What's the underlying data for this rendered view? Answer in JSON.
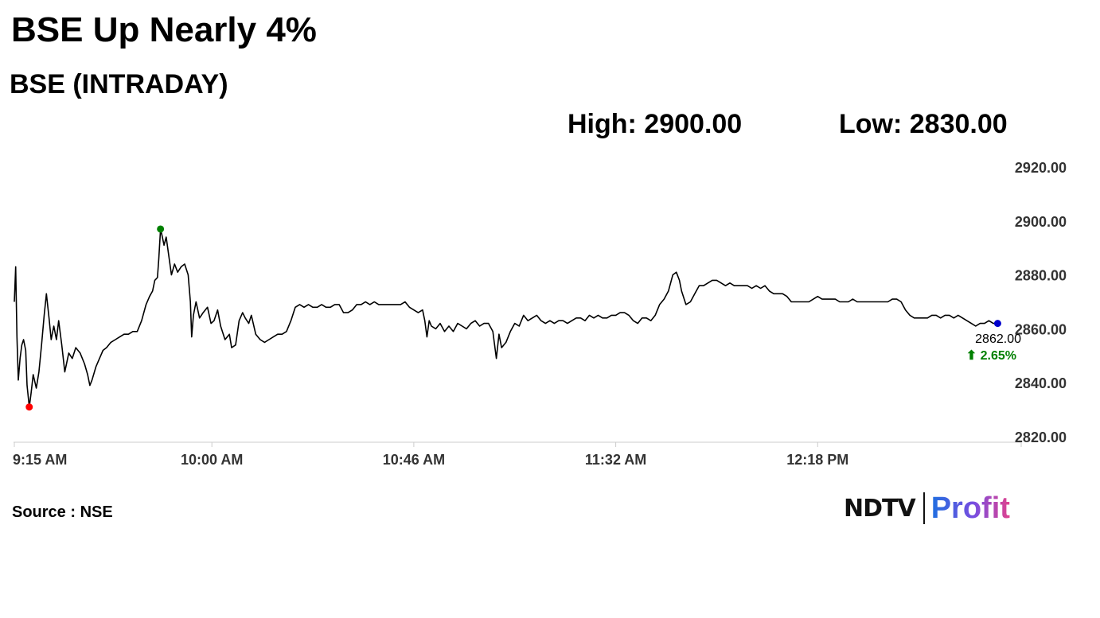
{
  "headline": "BSE Up Nearly 4%",
  "subtitle": "BSE (INTRADAY)",
  "stats": {
    "high": "High: 2900.00",
    "low": "Low: 2830.00"
  },
  "source": "Source : NSE",
  "logo": {
    "brand": "NDTV",
    "product": "Profit"
  },
  "colors": {
    "line": "#000000",
    "high_marker": "#008000",
    "low_marker": "#ff0000",
    "last_marker": "#0000cc",
    "change_up": "#008000",
    "grid_axis": "#cccccc"
  },
  "chart_data": {
    "type": "line",
    "title": "BSE (INTRADAY)",
    "ylim": [
      2820,
      2920
    ],
    "y_ticks": [
      "2920.00",
      "2900.00",
      "2880.00",
      "2860.00",
      "2840.00",
      "2820.00"
    ],
    "x_ticks": [
      "9:15 AM",
      "10:00 AM",
      "10:46 AM",
      "11:32 AM",
      "12:18 PM"
    ],
    "x_tick_minutes": [
      0,
      45,
      91,
      137,
      183
    ],
    "x_range_minutes": [
      0,
      229
    ],
    "x_unit": "minutes after 9:15 AM",
    "grid": false,
    "series": [
      {
        "values": [
          [
            0,
            2870
          ],
          [
            0.3,
            2883
          ],
          [
            0.6,
            2857
          ],
          [
            0.9,
            2841
          ],
          [
            1.3,
            2849
          ],
          [
            1.7,
            2854
          ],
          [
            2.1,
            2856
          ],
          [
            2.6,
            2852
          ],
          [
            2.9,
            2839
          ],
          [
            3.4,
            2831
          ],
          [
            3.8,
            2836
          ],
          [
            4.3,
            2843
          ],
          [
            5,
            2838
          ],
          [
            5.6,
            2844
          ],
          [
            6.2,
            2854
          ],
          [
            6.8,
            2865
          ],
          [
            7.3,
            2873
          ],
          [
            7.9,
            2864
          ],
          [
            8.4,
            2856
          ],
          [
            9,
            2861
          ],
          [
            9.6,
            2856
          ],
          [
            10.1,
            2863
          ],
          [
            10.8,
            2854
          ],
          [
            11.5,
            2844
          ],
          [
            12.4,
            2851
          ],
          [
            13.2,
            2849
          ],
          [
            14,
            2853
          ],
          [
            15,
            2851
          ],
          [
            16,
            2847
          ],
          [
            16.7,
            2843
          ],
          [
            17.2,
            2839
          ],
          [
            17.7,
            2841
          ],
          [
            18.6,
            2846
          ],
          [
            19.4,
            2849
          ],
          [
            20.2,
            2852
          ],
          [
            21,
            2853
          ],
          [
            22,
            2855
          ],
          [
            23,
            2856
          ],
          [
            24,
            2857
          ],
          [
            25,
            2858
          ],
          [
            26,
            2858
          ],
          [
            27,
            2859
          ],
          [
            28,
            2859
          ],
          [
            29,
            2863
          ],
          [
            30,
            2869
          ],
          [
            30.8,
            2872
          ],
          [
            31.5,
            2874
          ],
          [
            32,
            2878
          ],
          [
            32.6,
            2879
          ],
          [
            32.9,
            2886
          ],
          [
            33.3,
            2897
          ],
          [
            33.6,
            2895
          ],
          [
            34.1,
            2891
          ],
          [
            34.6,
            2894
          ],
          [
            35.2,
            2887
          ],
          [
            35.8,
            2880
          ],
          [
            36.5,
            2884
          ],
          [
            37.2,
            2881
          ],
          [
            38,
            2883
          ],
          [
            38.8,
            2884
          ],
          [
            39.6,
            2880
          ],
          [
            40.1,
            2870
          ],
          [
            40.4,
            2857
          ],
          [
            40.8,
            2865
          ],
          [
            41.4,
            2870
          ],
          [
            42.2,
            2864
          ],
          [
            43,
            2866
          ],
          [
            44,
            2868
          ],
          [
            44.8,
            2862
          ],
          [
            45.5,
            2863
          ],
          [
            46.3,
            2867
          ],
          [
            47,
            2861
          ],
          [
            48,
            2856
          ],
          [
            49,
            2858
          ],
          [
            49.5,
            2853
          ],
          [
            50.4,
            2854
          ],
          [
            51.2,
            2863
          ],
          [
            52,
            2866
          ],
          [
            52.6,
            2864
          ],
          [
            53.4,
            2862
          ],
          [
            54,
            2865
          ],
          [
            55,
            2858
          ],
          [
            56,
            2856
          ],
          [
            57,
            2855
          ],
          [
            58,
            2856
          ],
          [
            59,
            2857
          ],
          [
            60,
            2858
          ],
          [
            61,
            2858
          ],
          [
            62,
            2859
          ],
          [
            63,
            2863
          ],
          [
            64,
            2868
          ],
          [
            65,
            2869
          ],
          [
            66,
            2868
          ],
          [
            67,
            2869
          ],
          [
            68,
            2868
          ],
          [
            69,
            2868
          ],
          [
            70,
            2869
          ],
          [
            71,
            2868
          ],
          [
            72,
            2868
          ],
          [
            73,
            2869
          ],
          [
            74,
            2869
          ],
          [
            75,
            2866
          ],
          [
            76,
            2866
          ],
          [
            77,
            2867
          ],
          [
            78,
            2869
          ],
          [
            79,
            2869
          ],
          [
            80,
            2870
          ],
          [
            81,
            2869
          ],
          [
            82,
            2870
          ],
          [
            83,
            2869
          ],
          [
            84,
            2869
          ],
          [
            85,
            2869
          ],
          [
            86,
            2869
          ],
          [
            87,
            2869
          ],
          [
            88,
            2869
          ],
          [
            89,
            2870
          ],
          [
            90,
            2868
          ],
          [
            91,
            2867
          ],
          [
            92,
            2866
          ],
          [
            93,
            2867
          ],
          [
            93.5,
            2863
          ],
          [
            94,
            2857
          ],
          [
            94.5,
            2863
          ],
          [
            95,
            2861
          ],
          [
            96,
            2860
          ],
          [
            97,
            2862
          ],
          [
            98,
            2859
          ],
          [
            99,
            2861
          ],
          [
            100,
            2859
          ],
          [
            101,
            2862
          ],
          [
            102,
            2861
          ],
          [
            103,
            2860
          ],
          [
            104,
            2862
          ],
          [
            105,
            2863
          ],
          [
            106,
            2861
          ],
          [
            107,
            2862
          ],
          [
            108,
            2862
          ],
          [
            109,
            2859
          ],
          [
            109.8,
            2849
          ],
          [
            110.4,
            2858
          ],
          [
            111,
            2853
          ],
          [
            112,
            2855
          ],
          [
            113,
            2859
          ],
          [
            114,
            2862
          ],
          [
            115,
            2861
          ],
          [
            116,
            2865
          ],
          [
            117,
            2863
          ],
          [
            118,
            2864
          ],
          [
            119,
            2865
          ],
          [
            120,
            2863
          ],
          [
            121,
            2862
          ],
          [
            122,
            2863
          ],
          [
            123,
            2862
          ],
          [
            124,
            2863
          ],
          [
            125,
            2863
          ],
          [
            126,
            2862
          ],
          [
            127,
            2863
          ],
          [
            128,
            2864
          ],
          [
            129,
            2864
          ],
          [
            130,
            2863
          ],
          [
            131,
            2865
          ],
          [
            132,
            2864
          ],
          [
            133,
            2865
          ],
          [
            134,
            2864
          ],
          [
            135,
            2864
          ],
          [
            136,
            2865
          ],
          [
            137,
            2865
          ],
          [
            138,
            2866
          ],
          [
            139,
            2866
          ],
          [
            140,
            2865
          ],
          [
            141,
            2863
          ],
          [
            142,
            2862
          ],
          [
            143,
            2864
          ],
          [
            144,
            2864
          ],
          [
            145,
            2863
          ],
          [
            146,
            2865
          ],
          [
            147,
            2869
          ],
          [
            148,
            2871
          ],
          [
            149,
            2874
          ],
          [
            150,
            2880
          ],
          [
            150.8,
            2881
          ],
          [
            151.5,
            2878
          ],
          [
            152,
            2874
          ],
          [
            153,
            2869
          ],
          [
            154,
            2870
          ],
          [
            155,
            2873
          ],
          [
            156,
            2876
          ],
          [
            157,
            2876
          ],
          [
            158,
            2877
          ],
          [
            159,
            2878
          ],
          [
            160,
            2878
          ],
          [
            161,
            2877
          ],
          [
            162,
            2876
          ],
          [
            163,
            2877
          ],
          [
            164,
            2876
          ],
          [
            165,
            2876
          ],
          [
            166,
            2876
          ],
          [
            167,
            2876
          ],
          [
            168,
            2875
          ],
          [
            169,
            2876
          ],
          [
            170,
            2875
          ],
          [
            171,
            2876
          ],
          [
            172,
            2874
          ],
          [
            173,
            2873
          ],
          [
            174,
            2873
          ],
          [
            175,
            2873
          ],
          [
            176,
            2872
          ],
          [
            177,
            2870
          ],
          [
            178,
            2870
          ],
          [
            179,
            2870
          ],
          [
            180,
            2870
          ],
          [
            181,
            2870
          ],
          [
            182,
            2871
          ],
          [
            183,
            2872
          ],
          [
            184,
            2871
          ],
          [
            185,
            2871
          ],
          [
            186,
            2871
          ],
          [
            187,
            2871
          ],
          [
            188,
            2870
          ],
          [
            189,
            2870
          ],
          [
            190,
            2870
          ],
          [
            191,
            2871
          ],
          [
            192,
            2870
          ],
          [
            193,
            2870
          ],
          [
            194,
            2870
          ],
          [
            195,
            2870
          ],
          [
            196,
            2870
          ],
          [
            197,
            2870
          ],
          [
            198,
            2870
          ],
          [
            199,
            2870
          ],
          [
            200,
            2871
          ],
          [
            201,
            2871
          ],
          [
            202,
            2870
          ],
          [
            203,
            2867
          ],
          [
            204,
            2865
          ],
          [
            205,
            2864
          ],
          [
            206,
            2864
          ],
          [
            207,
            2864
          ],
          [
            208,
            2864
          ],
          [
            209,
            2865
          ],
          [
            210,
            2865
          ],
          [
            211,
            2864
          ],
          [
            212,
            2865
          ],
          [
            213,
            2865
          ],
          [
            214,
            2864
          ],
          [
            215,
            2865
          ],
          [
            216,
            2864
          ],
          [
            217,
            2863
          ],
          [
            218,
            2862
          ],
          [
            219,
            2861
          ],
          [
            220,
            2862
          ],
          [
            221,
            2862
          ],
          [
            222,
            2863
          ],
          [
            223,
            2862
          ],
          [
            224,
            2862
          ]
        ]
      }
    ],
    "markers": {
      "high": {
        "x": 33.3,
        "y": 2897
      },
      "low": {
        "x": 3.4,
        "y": 2831
      },
      "last": {
        "x": 224,
        "y": 2862
      }
    },
    "last_value_label": "2862.00",
    "change_label": "⬆ 2.65%"
  }
}
